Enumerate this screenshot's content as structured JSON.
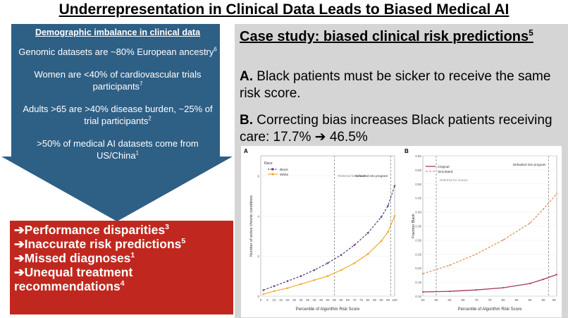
{
  "title": "Underrepresentation in Clinical Data Leads to Biased Medical AI",
  "left_panel": {
    "heading": "Demographic imbalance in clinical data",
    "items": [
      {
        "text": "Genomic datasets are ~80% European ancestry",
        "ref": "6"
      },
      {
        "text": "Women are <40% of cardiovascular trials participants",
        "ref": "7"
      },
      {
        "text": "Adults >65 are >40% disease burden, ~25% of trial participants",
        "ref": "2"
      },
      {
        "text": ">50% of medical AI datasets come from US/China",
        "ref": "1"
      }
    ],
    "arrow_color": "#2e5f85"
  },
  "outcomes": {
    "color": "#c0281f",
    "items": [
      {
        "text": "➔Performance disparities",
        "ref": "3"
      },
      {
        "text": "➔Inaccurate risk predictions",
        "ref": "5"
      },
      {
        "text": "➔Missed diagnoses",
        "ref": "1"
      },
      {
        "text": "➔Unequal treatment recommendations",
        "ref": "4"
      }
    ]
  },
  "case_study": {
    "title": "Case study: biased clinical risk predictions",
    "title_ref": "5",
    "point_a_label": "A.",
    "point_a_text": " Black patients must be sicker to receive the same risk score.",
    "point_b_label": "B.",
    "point_b_text": " Correcting bias increases Black patients receiving care: 17.7% ➔ 46.5%"
  },
  "chart_data": [
    {
      "type": "scatter",
      "panel_label": "A",
      "xlabel": "Percentile of Algorithm Risk Score",
      "ylabel": "Number of active chronic conditions",
      "xlim": [
        0,
        100
      ],
      "ylim": [
        0,
        7
      ],
      "xticks": [
        "0",
        "5",
        "10",
        "15",
        "20",
        "25",
        "30",
        "35",
        "40",
        "45",
        "50",
        "55",
        "60",
        "65",
        "70",
        "75",
        "80",
        "85",
        "90",
        "95",
        "100"
      ],
      "yticks": [
        "0",
        "2",
        "4",
        "6"
      ],
      "legend_title": "Race",
      "legend_placement": "top-left",
      "annotations": [
        {
          "text": "Referred for screen",
          "x": 55
        },
        {
          "text": "Defaulted into program",
          "x": 97
        }
      ],
      "series": [
        {
          "name": "Black",
          "color": "#5b3a7a",
          "x": [
            2,
            10,
            20,
            30,
            40,
            50,
            60,
            70,
            80,
            90,
            95,
            100
          ],
          "y": [
            0.3,
            0.5,
            0.75,
            1.0,
            1.3,
            1.65,
            2.05,
            2.55,
            3.15,
            3.95,
            4.5,
            5.5
          ]
        },
        {
          "name": "White",
          "color": "#f0a91f",
          "x": [
            2,
            10,
            20,
            30,
            40,
            50,
            60,
            70,
            80,
            90,
            95,
            100
          ],
          "y": [
            0.1,
            0.25,
            0.4,
            0.6,
            0.8,
            1.0,
            1.3,
            1.65,
            2.1,
            2.75,
            3.2,
            4.0
          ]
        }
      ]
    },
    {
      "type": "line",
      "panel_label": "B",
      "xlabel": "Percentile of Algorithm Risk Score",
      "ylabel": "Fraction Black",
      "xlim": [
        50,
        100
      ],
      "ylim": [
        0.1,
        0.6
      ],
      "xticks": [
        "50",
        "55",
        "60",
        "65",
        "70",
        "75",
        "80",
        "85",
        "90",
        "95",
        "99"
      ],
      "yticks": [
        "0.10",
        "0.15",
        "0.20",
        "0.25",
        "0.30",
        "0.35",
        "0.40",
        "0.45",
        "0.50",
        "0.55",
        "0.60"
      ],
      "legend_placement": "top-left",
      "annotations": [
        {
          "text": "Referred for screen",
          "x": 55
        },
        {
          "text": "Defaulted into program",
          "x": 97
        }
      ],
      "series": [
        {
          "name": "Original",
          "color": "#a4385c",
          "x": [
            50,
            60,
            70,
            80,
            90,
            95,
            100
          ],
          "y": [
            0.115,
            0.117,
            0.122,
            0.13,
            0.145,
            0.16,
            0.177
          ]
        },
        {
          "name": "Simulated",
          "color": "#e2915e",
          "x": [
            50,
            60,
            70,
            80,
            90,
            95,
            100
          ],
          "y": [
            0.18,
            0.21,
            0.25,
            0.3,
            0.36,
            0.41,
            0.465
          ]
        }
      ]
    }
  ]
}
